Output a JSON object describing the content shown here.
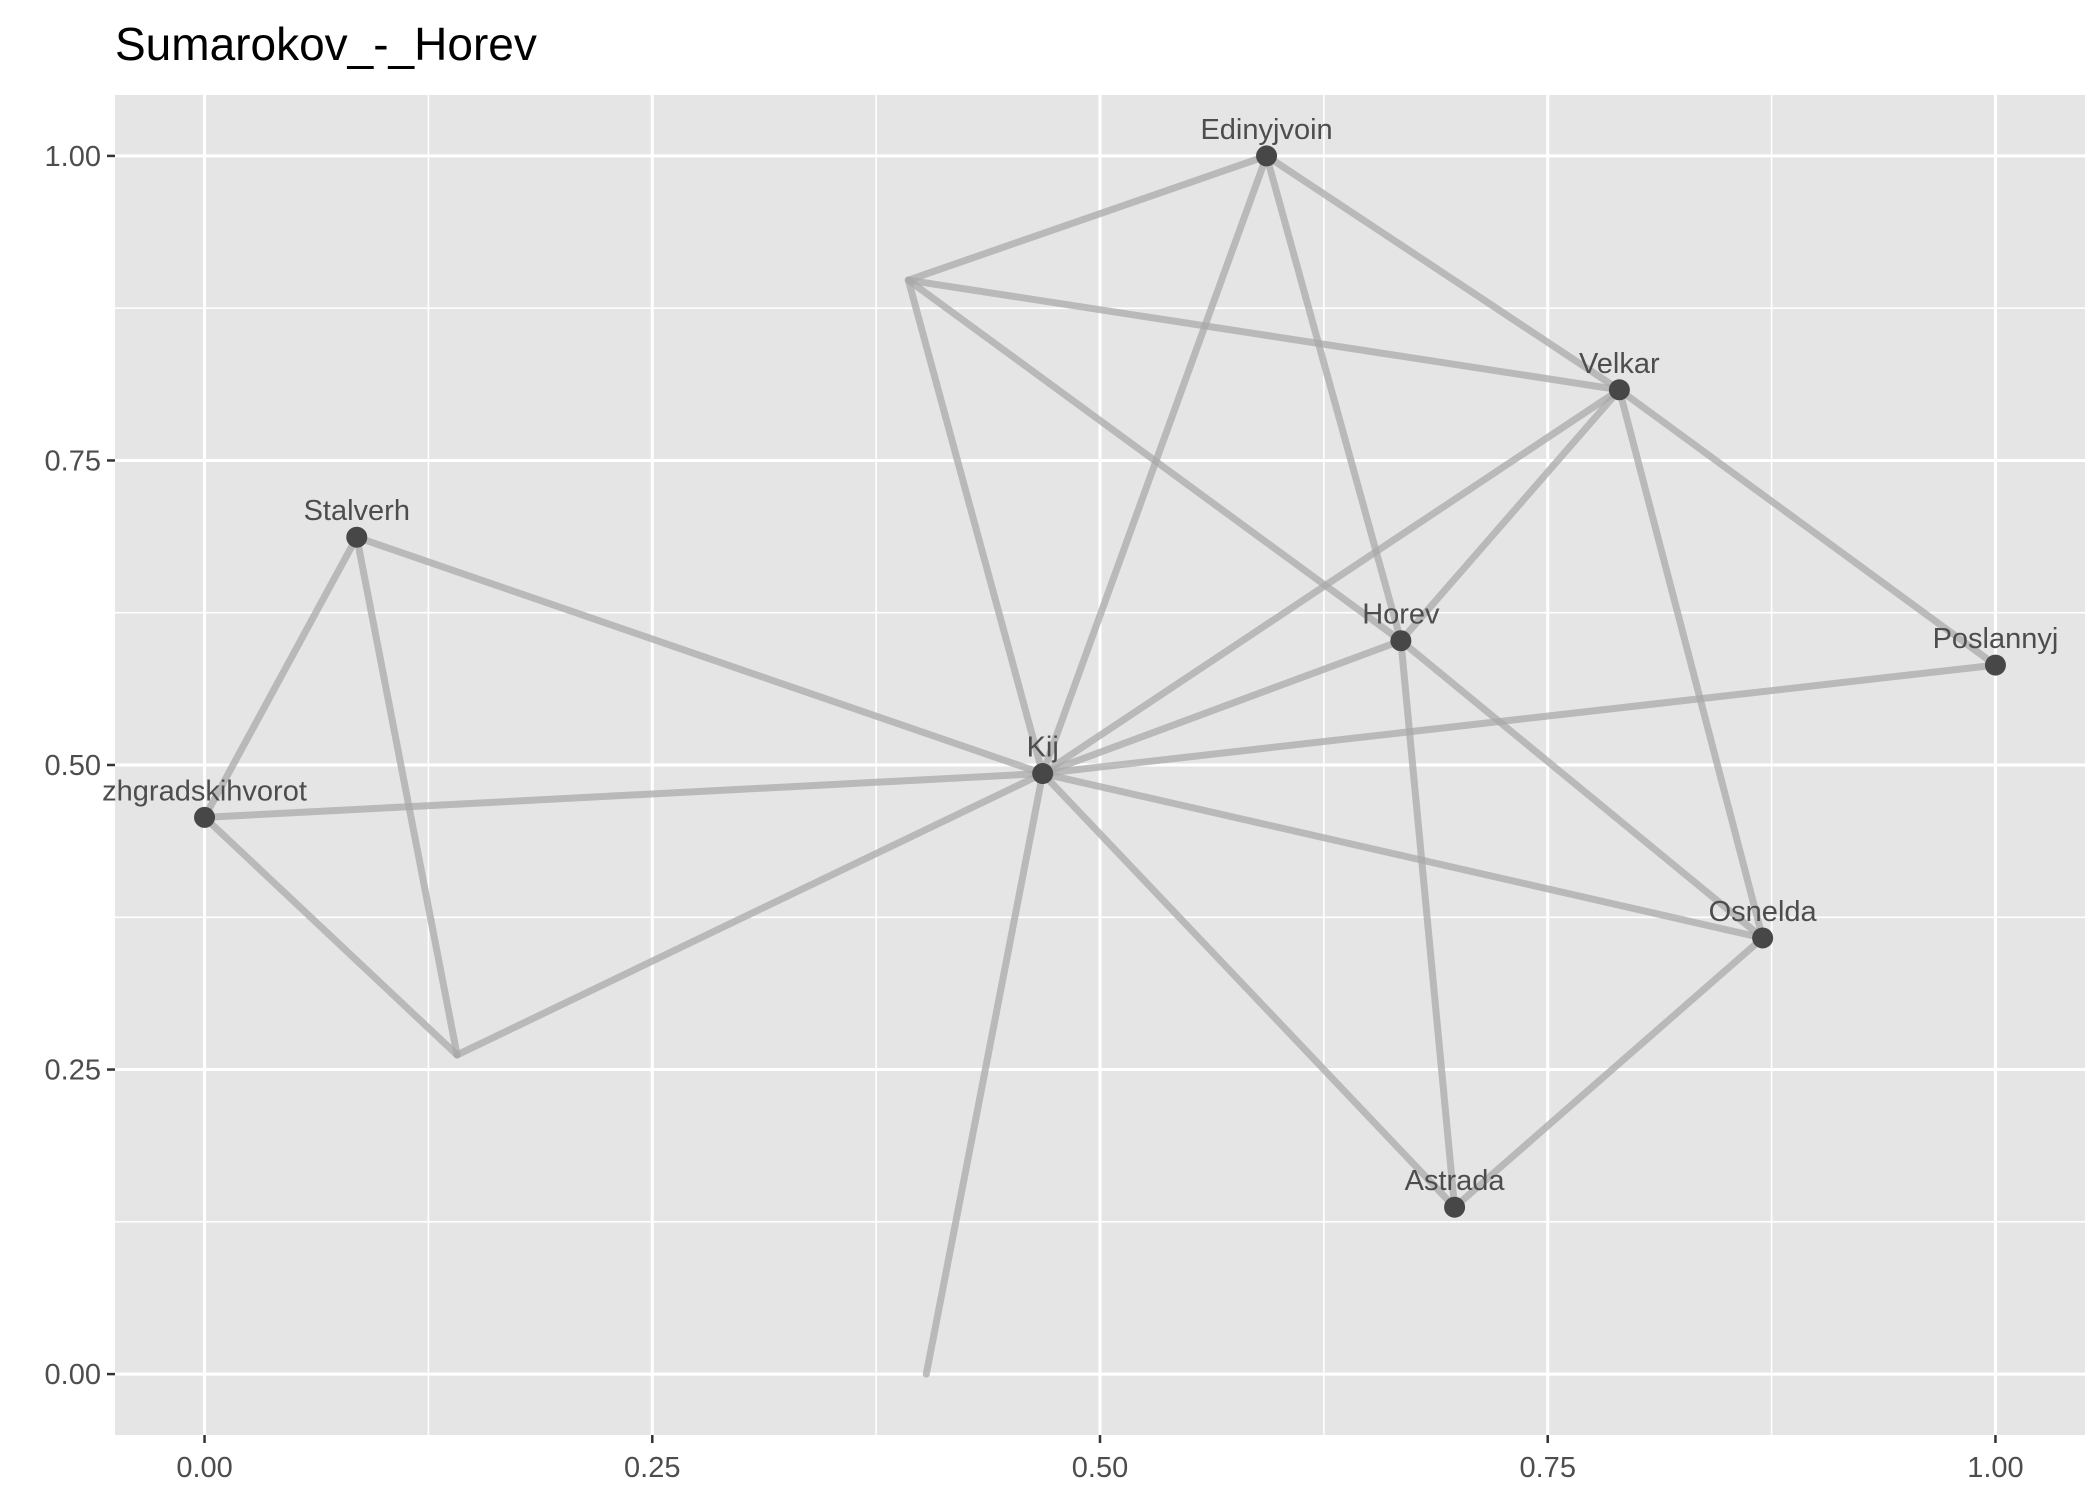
{
  "chart_data": {
    "type": "network",
    "title": "Sumarokov_-_Horev",
    "xlabel": "",
    "ylabel": "",
    "xlim": [
      -0.05,
      1.05
    ],
    "ylim": [
      -0.05,
      1.05
    ],
    "x_ticks": [
      0.0,
      0.25,
      0.5,
      0.75,
      1.0
    ],
    "x_tick_labels": [
      "0.00",
      "0.25",
      "0.50",
      "0.75",
      "1.00"
    ],
    "y_ticks": [
      0.0,
      0.25,
      0.5,
      0.75,
      1.0
    ],
    "y_tick_labels": [
      "0.00",
      "0.25",
      "0.50",
      "0.75",
      "1.00"
    ],
    "grid": true,
    "colors": {
      "panel": "#e5e5e5",
      "grid": "#ffffff",
      "edge": "#a9a9a9",
      "node": "#474747",
      "label": "#4d4d4d"
    },
    "nodes": [
      {
        "id": "Edinyjvoin",
        "label": "Edinyjvoin",
        "x": 0.593,
        "y": 1.0
      },
      {
        "id": "Velkar",
        "label": "Velkar",
        "x": 0.79,
        "y": 0.808
      },
      {
        "id": "Stalverh",
        "label": "Stalverh",
        "x": 0.085,
        "y": 0.687
      },
      {
        "id": "Horev",
        "label": "Horev",
        "x": 0.668,
        "y": 0.602
      },
      {
        "id": "Poslannyj",
        "label": "Poslannyj",
        "x": 1.0,
        "y": 0.582
      },
      {
        "id": "Kij",
        "label": "Kij",
        "x": 0.468,
        "y": 0.493
      },
      {
        "id": "zhgradskihvorot",
        "label": "zhgradskihvorot",
        "x": 0.0,
        "y": 0.457
      },
      {
        "id": "Osnelda",
        "label": "Osnelda",
        "x": 0.87,
        "y": 0.358
      },
      {
        "id": "Astrada",
        "label": "Astrada",
        "x": 0.698,
        "y": 0.137
      },
      {
        "id": "p1",
        "label": "",
        "x": 0.393,
        "y": 0.898
      },
      {
        "id": "p2",
        "label": "",
        "x": 0.141,
        "y": 0.262
      },
      {
        "id": "p3",
        "label": "",
        "x": 0.403,
        "y": 0.0
      }
    ],
    "edges": [
      [
        "p1",
        "Edinyjvoin"
      ],
      [
        "p1",
        "Velkar"
      ],
      [
        "p1",
        "Horev"
      ],
      [
        "p1",
        "Kij"
      ],
      [
        "Edinyjvoin",
        "Velkar"
      ],
      [
        "Edinyjvoin",
        "Kij"
      ],
      [
        "Edinyjvoin",
        "Horev"
      ],
      [
        "Velkar",
        "Poslannyj"
      ],
      [
        "Velkar",
        "Horev"
      ],
      [
        "Velkar",
        "Kij"
      ],
      [
        "Velkar",
        "Osnelda"
      ],
      [
        "Stalverh",
        "zhgradskihvorot"
      ],
      [
        "Stalverh",
        "p2"
      ],
      [
        "Stalverh",
        "Kij"
      ],
      [
        "zhgradskihvorot",
        "Kij"
      ],
      [
        "zhgradskihvorot",
        "p2"
      ],
      [
        "p2",
        "Kij"
      ],
      [
        "Kij",
        "Horev"
      ],
      [
        "Kij",
        "Poslannyj"
      ],
      [
        "Kij",
        "Osnelda"
      ],
      [
        "Kij",
        "Astrada"
      ],
      [
        "Kij",
        "p3"
      ],
      [
        "Horev",
        "Osnelda"
      ],
      [
        "Horev",
        "Astrada"
      ],
      [
        "Osnelda",
        "Astrada"
      ]
    ]
  }
}
